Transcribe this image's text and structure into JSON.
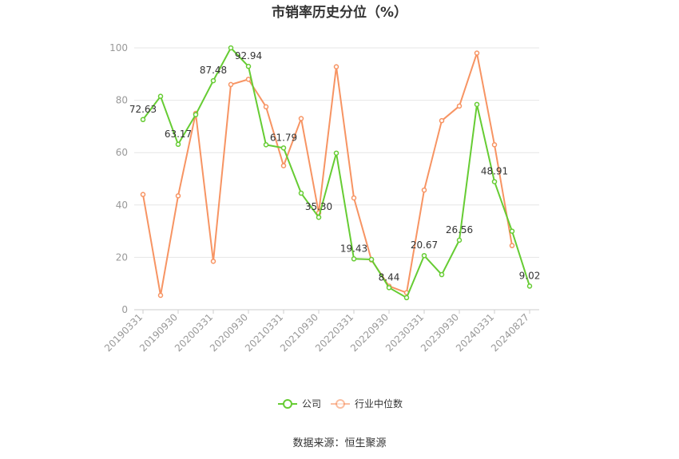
{
  "chart_data": {
    "type": "line",
    "title": "市销率历史分位（%）",
    "x": [
      "20190331",
      "20190630",
      "20190930",
      "20191231",
      "20200331",
      "20200630",
      "20200930",
      "20201231",
      "20210331",
      "20210630",
      "20210930",
      "20211231",
      "20220331",
      "20220630",
      "20220930",
      "20221231",
      "20230331",
      "20230630",
      "20230930",
      "20231231",
      "20240331",
      "20240630",
      "20240827"
    ],
    "x_tick_labels": [
      "20190331",
      "20190930",
      "20200331",
      "20200930",
      "20210331",
      "20210930",
      "20220331",
      "20220930",
      "20230331",
      "20230930",
      "20240331",
      "20240827"
    ],
    "ylim": [
      0,
      100
    ],
    "yticks": [
      0,
      20,
      40,
      60,
      80,
      100
    ],
    "grid": true,
    "legend_position": "bottom",
    "series": [
      {
        "name": "公司",
        "color": "#66cc33",
        "values": [
          72.63,
          81.5,
          63.17,
          74.5,
          87.48,
          100,
          92.94,
          63,
          61.79,
          44.5,
          35.3,
          59.8,
          19.43,
          19.2,
          8.44,
          4.6,
          20.67,
          13.4,
          26.56,
          78.4,
          48.91,
          30,
          9.02
        ],
        "labels": {
          "0": "72.63",
          "2": "63.17",
          "4": "87.48",
          "6": "92.94",
          "8": "61.79",
          "10": "35.30",
          "12": "19.43",
          "14": "8.44",
          "16": "20.67",
          "18": "26.56",
          "20": "48.91",
          "22": "9.02"
        }
      },
      {
        "name": "行业中位数",
        "color": "#f79463",
        "values": [
          44,
          5.5,
          43.5,
          75,
          18.5,
          86,
          88,
          77.5,
          55,
          73,
          37,
          92.8,
          42.7,
          19,
          9,
          6.5,
          45.7,
          72.2,
          77.8,
          98,
          63,
          24.5,
          null
        ]
      }
    ]
  },
  "source": "数据来源：恒生聚源"
}
